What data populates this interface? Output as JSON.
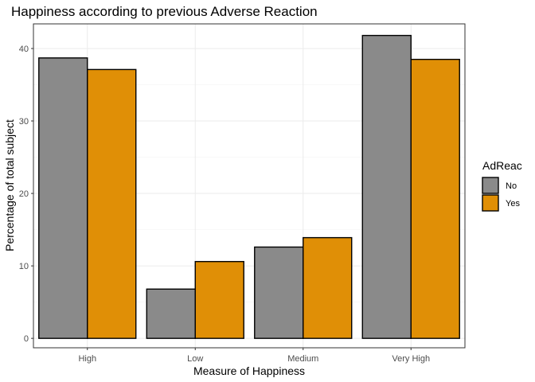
{
  "chart_data": {
    "type": "bar",
    "title": "Happiness according to previous Adverse Reaction",
    "xlabel": "Measure of Happiness",
    "ylabel": "Percentage of total subject",
    "categories": [
      "High",
      "Low",
      "Medium",
      "Very High"
    ],
    "ylim": [
      -1.3,
      43.4
    ],
    "yticks": [
      0,
      10,
      20,
      30,
      40
    ],
    "grid": true,
    "legend": {
      "title": "AdReac",
      "position": "right"
    },
    "series": [
      {
        "name": "No",
        "color": "#8a8a8a",
        "values": [
          38.7,
          6.8,
          12.6,
          41.8
        ]
      },
      {
        "name": "Yes",
        "color": "#e08f06",
        "values": [
          37.1,
          10.6,
          13.9,
          38.5
        ]
      }
    ]
  }
}
